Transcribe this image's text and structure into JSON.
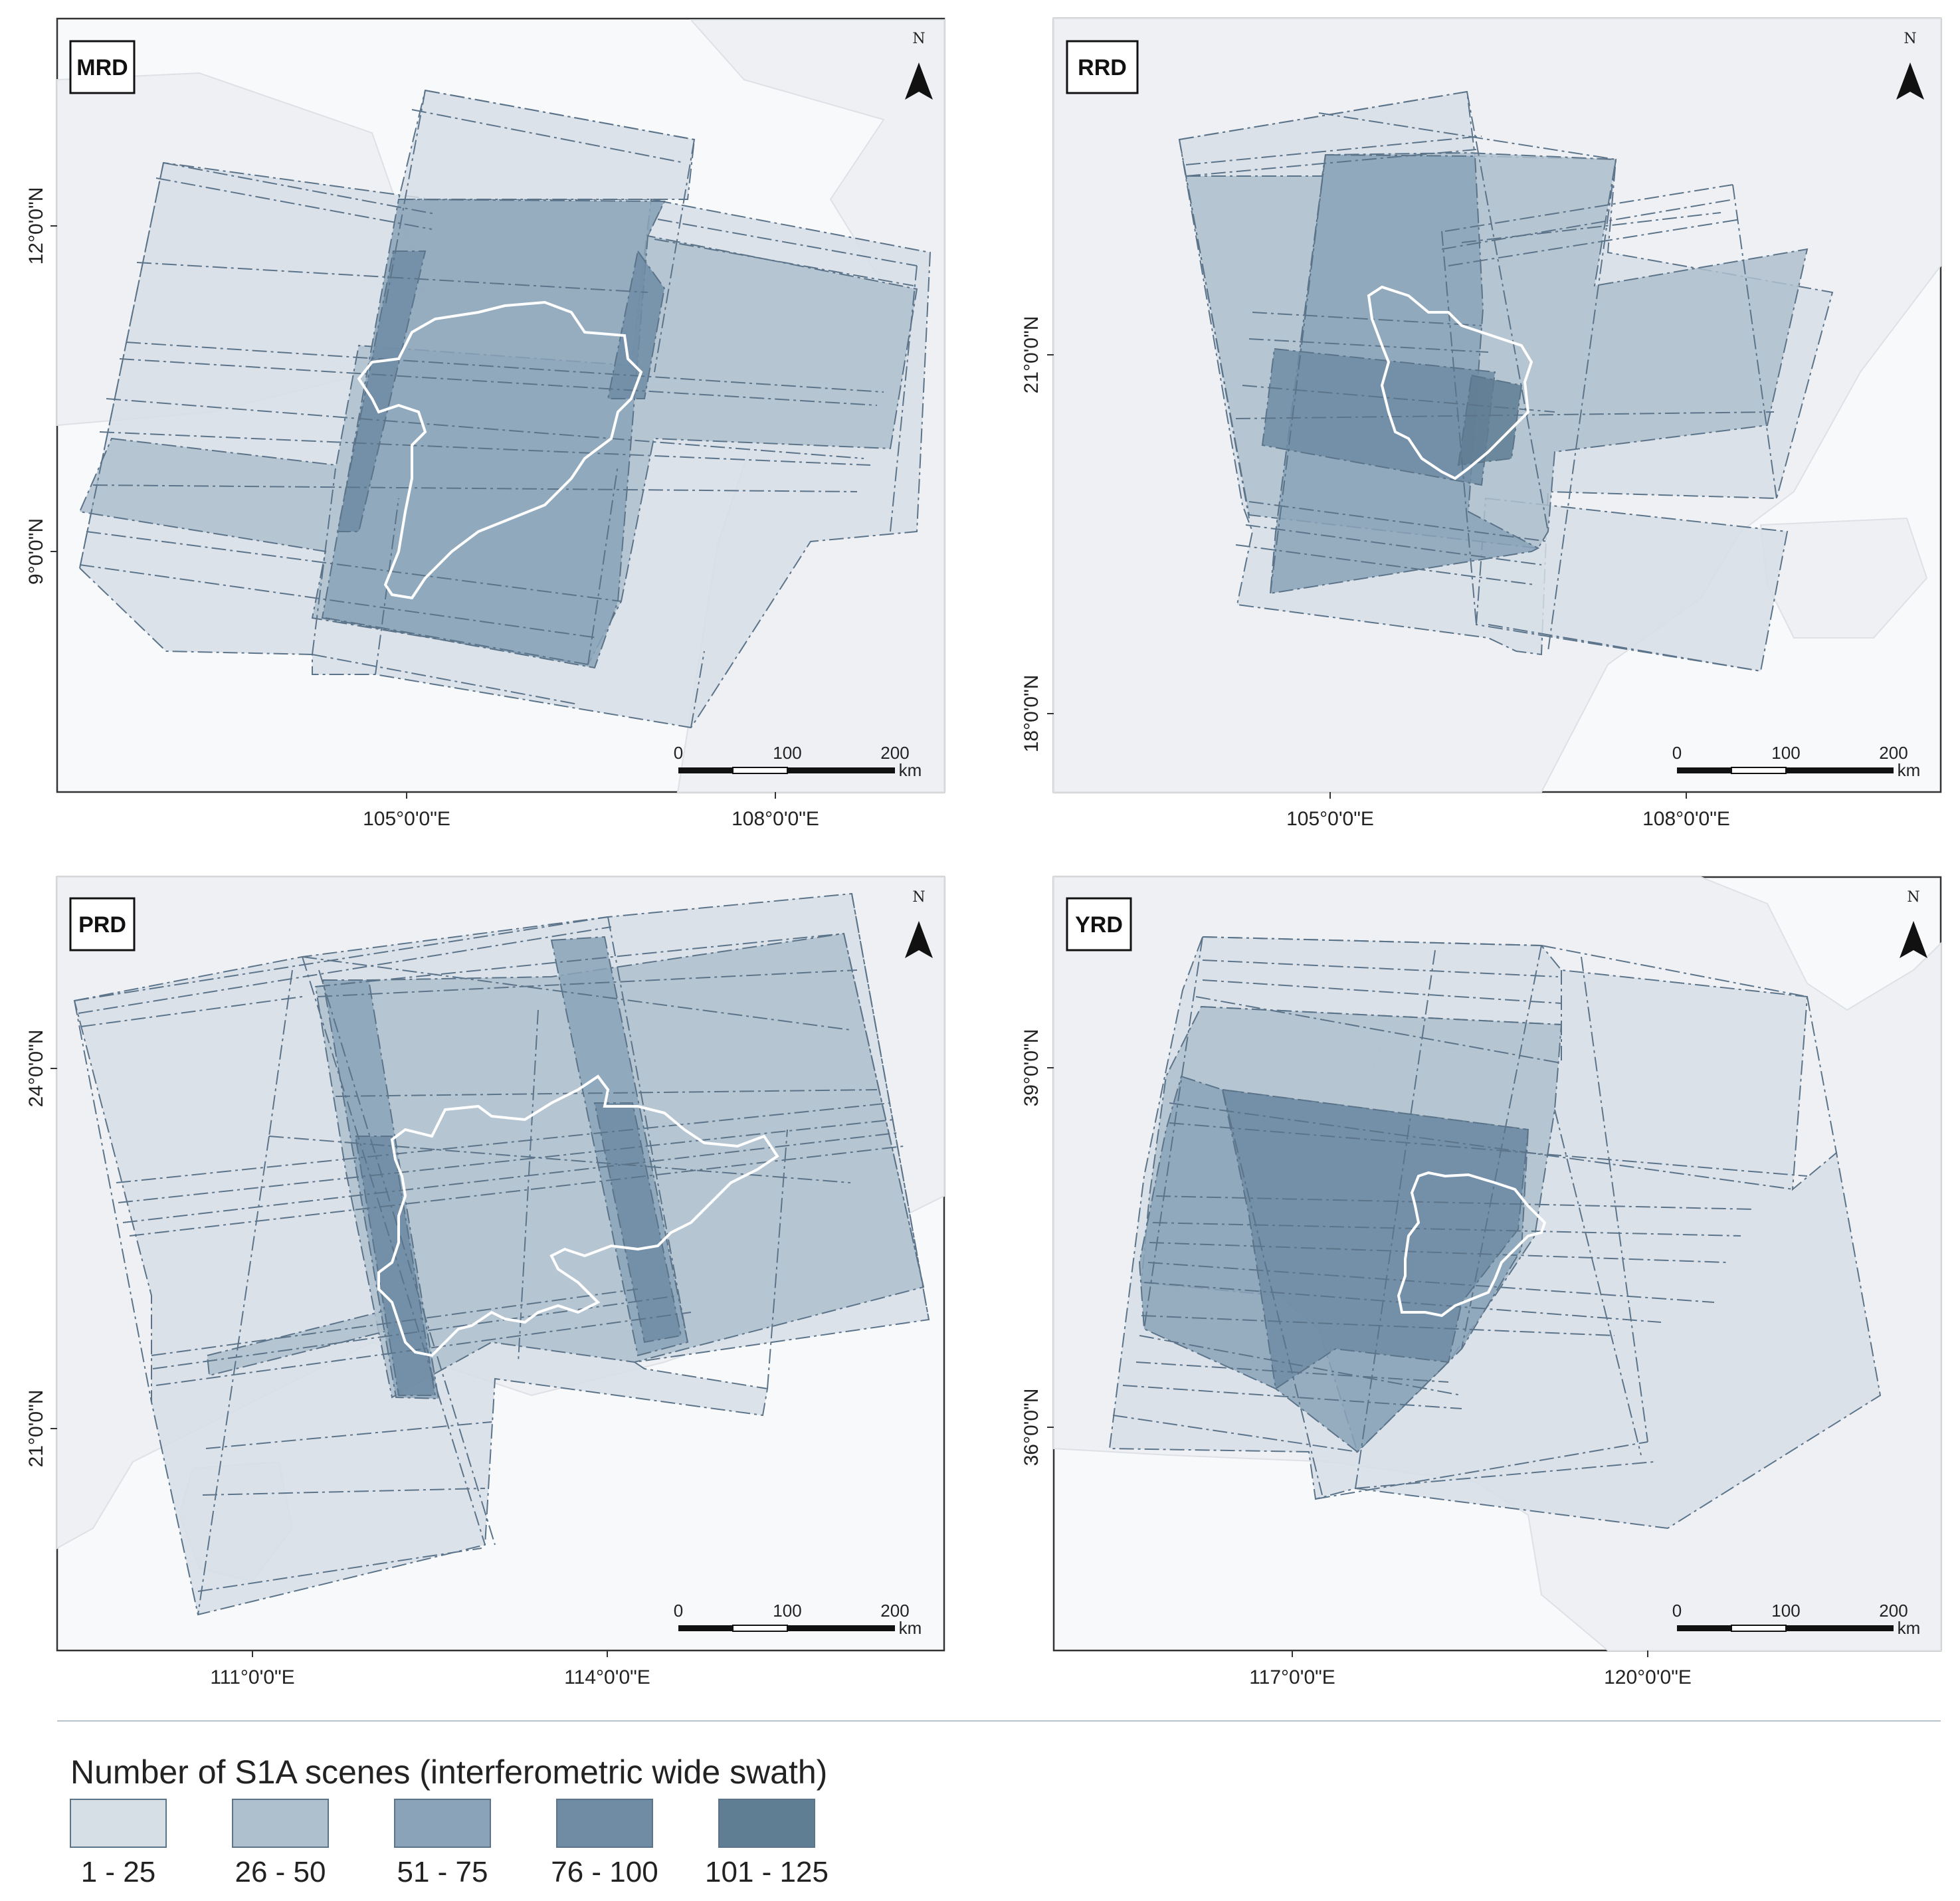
{
  "colors": {
    "class_fills": [
      "#d6dee6",
      "#aebfcd",
      "#8aa3b8",
      "#6f8ca4",
      "#5f7d93"
    ],
    "frame_stroke": "#5c748a",
    "delta_outline": "#ffffff",
    "land": "#eef0f3",
    "sea": "#f8f9fb"
  },
  "panels": [
    {
      "label": "MRD",
      "north": "N",
      "lon_ticks": [
        "105°0'0\"E",
        "108°0'0\"E"
      ],
      "lat_ticks": [
        "12°0'0\"N",
        "9°0'0\"N"
      ],
      "scale": {
        "labels": [
          "0",
          "100",
          "200"
        ],
        "unit": "km"
      }
    },
    {
      "label": "RRD",
      "north": "N",
      "lon_ticks": [
        "105°0'0\"E",
        "108°0'0\"E"
      ],
      "lat_ticks": [
        "21°0'0\"N",
        "18°0'0\"N"
      ],
      "scale": {
        "labels": [
          "0",
          "100",
          "200"
        ],
        "unit": "km"
      }
    },
    {
      "label": "PRD",
      "north": "N",
      "lon_ticks": [
        "111°0'0\"E",
        "114°0'0\"E"
      ],
      "lat_ticks": [
        "24°0'0\"N",
        "21°0'0\"N"
      ],
      "scale": {
        "labels": [
          "0",
          "100",
          "200"
        ],
        "unit": "km"
      }
    },
    {
      "label": "YRD",
      "north": "N",
      "lon_ticks": [
        "117°0'0\"E",
        "120°0'0\"E"
      ],
      "lat_ticks": [
        "39°0'0\"N",
        "36°0'0\"N"
      ],
      "scale": {
        "labels": [
          "0",
          "100",
          "200"
        ],
        "unit": "km"
      }
    }
  ],
  "legend": {
    "title": "Number of S1A scenes (interferometric wide swath)",
    "classes": [
      "1 - 25",
      "26 - 50",
      "51 - 75",
      "76 - 100",
      "101 - 125"
    ]
  }
}
